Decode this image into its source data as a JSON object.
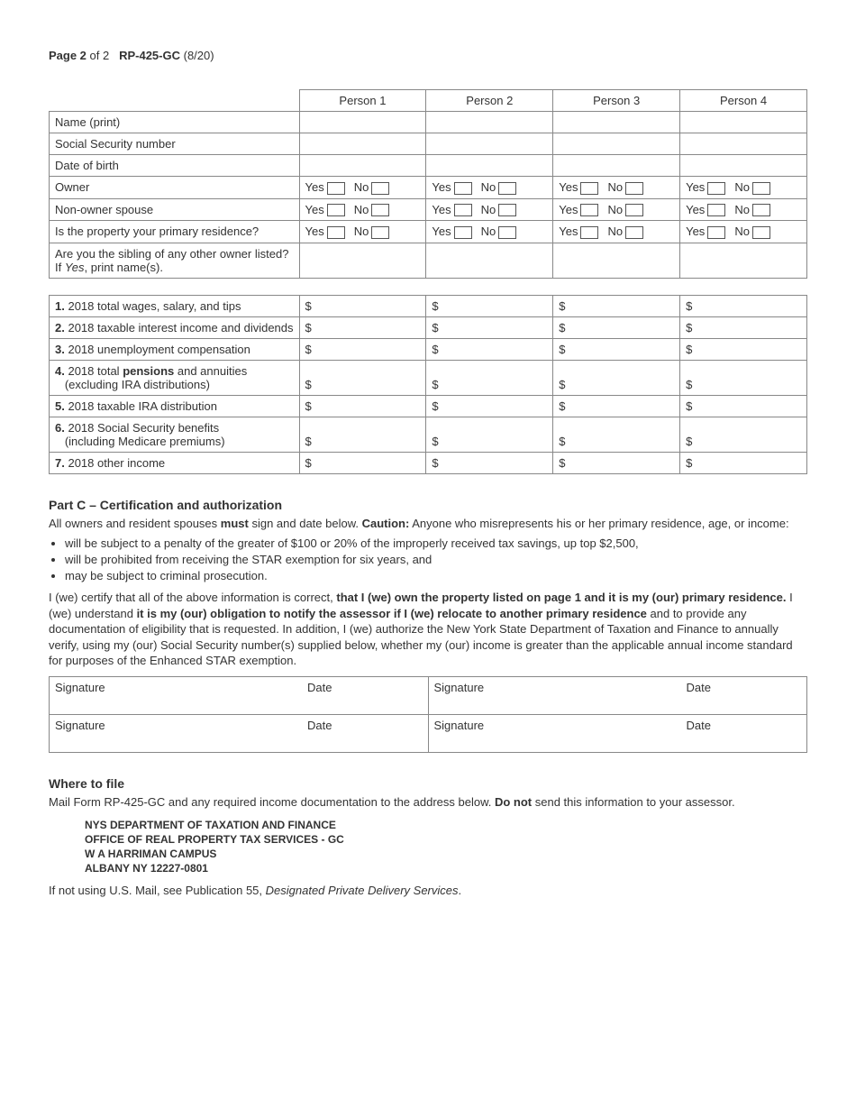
{
  "header": {
    "page_label": "Page 2",
    "of_label": "of 2",
    "form_id": "RP-425-GC",
    "rev": "(8/20)"
  },
  "persons_table": {
    "headers": [
      "Person 1",
      "Person 2",
      "Person 3",
      "Person 4"
    ],
    "rows": [
      {
        "label": "Name (print)",
        "type": "blank"
      },
      {
        "label": "Social Security number",
        "type": "blank"
      },
      {
        "label": "Date of birth",
        "type": "blank"
      },
      {
        "label": "Owner",
        "type": "yesno"
      },
      {
        "label": "Non-owner spouse",
        "type": "yesno"
      },
      {
        "label": "Is the property your primary residence?",
        "type": "yesno"
      },
      {
        "label_a": "Are you the sibling of any other owner listed?",
        "label_b": "If ",
        "label_b_italic": "Yes",
        "label_b_rest": ", print name(s).",
        "type": "blank_tall"
      }
    ],
    "yes_label": "Yes",
    "no_label": "No"
  },
  "income_table": {
    "currency": "$",
    "rows": [
      {
        "num": "1.",
        "text": "2018 total wages, salary, and tips"
      },
      {
        "num": "2.",
        "text": "2018 taxable interest income and dividends"
      },
      {
        "num": "3.",
        "text": "2018 unemployment compensation"
      },
      {
        "num": "4.",
        "text_a": "2018 total ",
        "bold": "pensions",
        "text_b": " and annuities",
        "sub": "(excluding IRA distributions)"
      },
      {
        "num": "5.",
        "text": "2018 taxable IRA distribution"
      },
      {
        "num": "6.",
        "text": "2018 Social Security benefits",
        "sub": "(including Medicare premiums)"
      },
      {
        "num": "7.",
        "text": "2018 other income"
      }
    ]
  },
  "partC": {
    "title": "Part C – Certification and authorization",
    "intro_a": "All owners and resident spouses ",
    "intro_bold1": "must",
    "intro_b": " sign and date below. ",
    "intro_bold2": "Caution:",
    "intro_c": " Anyone who misrepresents his or her primary residence, age, or income:",
    "bullets": [
      "will be subject to a penalty of the greater of $100 or 20% of the improperly received tax savings, up top $2,500,",
      "will be prohibited from receiving the STAR exemption for six years, and",
      "may be subject to criminal prosecution."
    ],
    "cert_a": "I (we) certify that all of the above information is correct, ",
    "cert_bold1": "that I (we) own the property listed on page 1 and it is my (our) primary residence.",
    "cert_b": " I (we) understand ",
    "cert_bold2": "it is my (our) obligation to notify the assessor if I (we) relocate to another primary residence",
    "cert_c": " and to provide any documentation of eligibility that is requested. In addition, I (we) authorize the New York State Department of Taxation and Finance to annually verify, using my (our) Social Security number(s) supplied below, whether my (our) income is greater than the applicable annual income standard for purposes of the Enhanced STAR exemption.",
    "sig_label": "Signature",
    "date_label": "Date"
  },
  "where": {
    "title": "Where to file",
    "intro_a": "Mail Form RP-425-GC and any required income documentation to the address below. ",
    "intro_bold": "Do not",
    "intro_b": " send this information to your assessor.",
    "addr": [
      "NYS DEPARTMENT OF TAXATION AND FINANCE",
      "OFFICE OF REAL PROPERTY TAX SERVICES - GC",
      "W A HARRIMAN CAMPUS",
      "ALBANY NY 12227-0801"
    ],
    "tail_a": "If not using U.S. Mail, see Publication 55, ",
    "tail_italic": "Designated Private Delivery Services",
    "tail_b": "."
  }
}
